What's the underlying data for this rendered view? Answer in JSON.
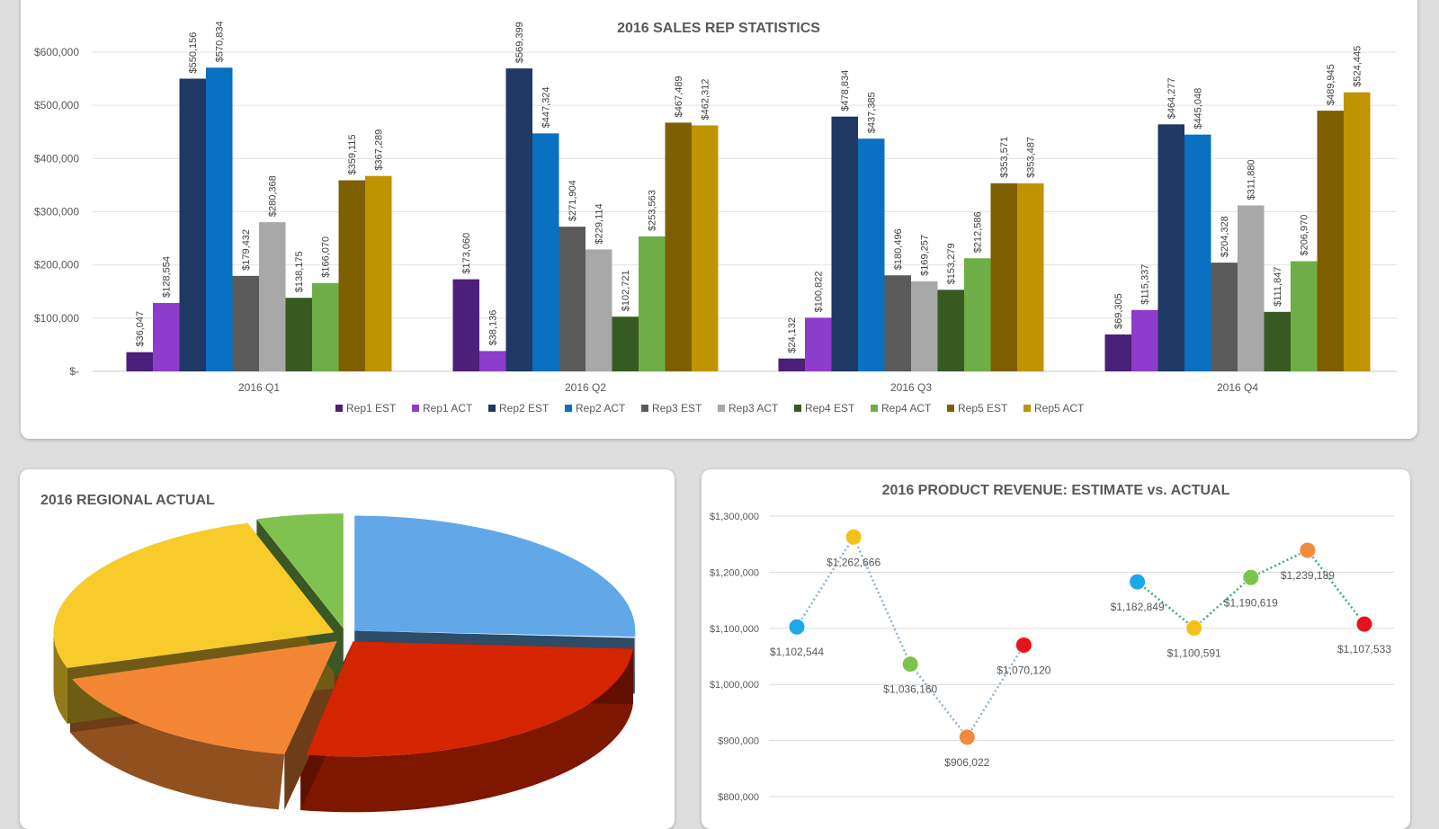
{
  "chart_data": [
    {
      "type": "bar",
      "title": "2016 SALES REP STATISTICS",
      "categories": [
        "2016 Q1",
        "2016 Q2",
        "2016 Q3",
        "2016 Q4"
      ],
      "ylim": [
        0,
        600000
      ],
      "yticks": [
        "$-",
        "$100,000",
        "$200,000",
        "$300,000",
        "$400,000",
        "$500,000",
        "$600,000"
      ],
      "grid": true,
      "legend_position": "bottom",
      "series": [
        {
          "name": "Rep1 EST",
          "color": "#4b1f7a",
          "values": [
            36047,
            173060,
            24132,
            69305
          ],
          "labels": [
            "$36,047",
            "$173,060",
            "$24,132",
            "$69,305"
          ]
        },
        {
          "name": "Rep1 ACT",
          "color": "#8e3ccb",
          "values": [
            128554,
            38136,
            100822,
            115337
          ],
          "labels": [
            "$128,554",
            "$38,136",
            "$100,822",
            "$115,337"
          ]
        },
        {
          "name": "Rep2 EST",
          "color": "#1f3864",
          "values": [
            550156,
            569399,
            478834,
            464277
          ],
          "labels": [
            "$550,156",
            "$569,399",
            "$478,834",
            "$464,277"
          ]
        },
        {
          "name": "Rep2 ACT",
          "color": "#0a70c2",
          "values": [
            570834,
            447324,
            437385,
            445048
          ],
          "labels": [
            "$570,834",
            "$447,324",
            "$437,385",
            "$445,048"
          ]
        },
        {
          "name": "Rep3 EST",
          "color": "#5a5a5a",
          "values": [
            179432,
            271904,
            180496,
            204328
          ],
          "labels": [
            "$179,432",
            "$271,904",
            "$180,496",
            "$204,328"
          ]
        },
        {
          "name": "Rep3 ACT",
          "color": "#a8a8a8",
          "values": [
            280368,
            229114,
            169257,
            311880
          ],
          "labels": [
            "$280,368",
            "$229,114",
            "$169,257",
            "$311,880"
          ]
        },
        {
          "name": "Rep4 EST",
          "color": "#375a23",
          "values": [
            138175,
            102721,
            153279,
            111847
          ],
          "labels": [
            "$138,175",
            "$102,721",
            "$153,279",
            "$111,847"
          ]
        },
        {
          "name": "Rep4 ACT",
          "color": "#6fae47",
          "values": [
            166070,
            253563,
            212586,
            206970
          ],
          "labels": [
            "$166,070",
            "$253,563",
            "$212,586",
            "$206,970"
          ]
        },
        {
          "name": "Rep5 EST",
          "color": "#7f6000",
          "values": [
            359115,
            467489,
            353571,
            489945
          ],
          "labels": [
            "$359,115",
            "$467,489",
            "$353,571",
            "$489,945"
          ]
        },
        {
          "name": "Rep5 ACT",
          "color": "#c09300",
          "values": [
            367289,
            462312,
            353487,
            524445
          ],
          "labels": [
            "$367,289",
            "$462,312",
            "$353,487",
            "$524,445"
          ]
        }
      ]
    },
    {
      "type": "pie",
      "title": "2016 REGIONAL ACTUAL",
      "style": "3d-exploded",
      "slices": [
        {
          "color": "#62a8e8",
          "share": 26
        },
        {
          "color": "#d42400",
          "share": 27
        },
        {
          "color": "#f28635",
          "share": 17
        },
        {
          "color": "#f7cb2a",
          "share": 25
        },
        {
          "color": "#80c24f",
          "share": 5
        }
      ]
    },
    {
      "type": "line",
      "title": "2016 PRODUCT REVENUE: ESTIMATE vs. ACTUAL",
      "ylim": [
        800000,
        1300000
      ],
      "yticks": [
        "$800,000",
        "$900,000",
        "$1,000,000",
        "$1,100,000",
        "$1,200,000",
        "$1,300,000"
      ],
      "grid": true,
      "series": [
        {
          "line_color": "#8fb3cc",
          "points": [
            {
              "y": 1102544,
              "label": "$1,102,544",
              "color": "#1ea8ec"
            },
            {
              "y": 1262666,
              "label": "$1,262,666",
              "color": "#f5c01c"
            },
            {
              "y": 1036160,
              "label": "$1,036,160",
              "color": "#7cc44c"
            },
            {
              "y": 906022,
              "label": "$906,022",
              "color": "#f28a3c"
            },
            {
              "y": 1070120,
              "label": "$1,070,120",
              "color": "#e8121c"
            }
          ]
        },
        {
          "line_color": "#3daa86",
          "points": [
            {
              "y": 1182849,
              "label": "$1,182,849",
              "color": "#1ea8ec"
            },
            {
              "y": 1100591,
              "label": "$1,100,591",
              "color": "#f5c01c"
            },
            {
              "y": 1190619,
              "label": "$1,190,619",
              "color": "#7cc44c"
            },
            {
              "y": 1239189,
              "label": "$1,239,189",
              "color": "#f28a3c"
            },
            {
              "y": 1107533,
              "label": "$1,107,533",
              "color": "#e8121c"
            }
          ]
        }
      ]
    }
  ]
}
